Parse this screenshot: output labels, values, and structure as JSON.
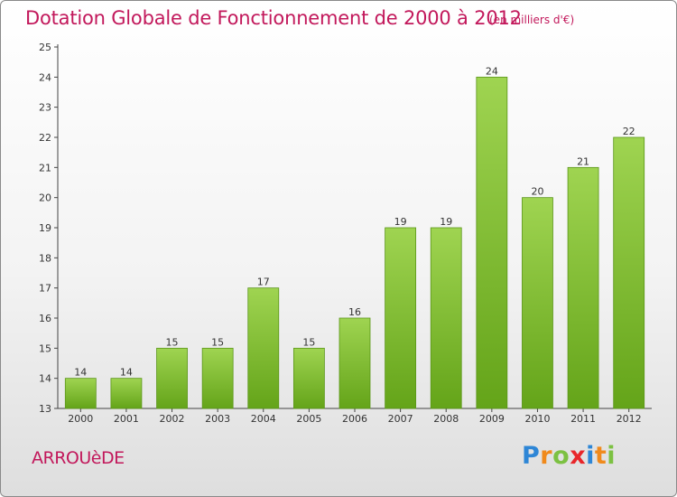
{
  "title": "Dotation Globale de Fonctionnement de 2000 à 2012",
  "subtitle": "(en milliers d'€)",
  "commune": "ARROUèDE",
  "logo": {
    "text": "Proxiti",
    "letters": [
      {
        "ch": "P",
        "color": "#2e86d6"
      },
      {
        "ch": "r",
        "color": "#f08a1c"
      },
      {
        "ch": "o",
        "color": "#7cc142"
      },
      {
        "ch": "x",
        "color": "#e8262a"
      },
      {
        "ch": "i",
        "color": "#2e86d6"
      },
      {
        "ch": "t",
        "color": "#f08a1c"
      },
      {
        "ch": "i",
        "color": "#7cc142"
      }
    ]
  },
  "colors": {
    "accent": "#c2185b",
    "bar_top": "#9fd451",
    "bar_bottom": "#64a419",
    "bar_edge": "#5a9618"
  },
  "chart_data": {
    "type": "bar",
    "categories": [
      "2000",
      "2001",
      "2002",
      "2003",
      "2004",
      "2005",
      "2006",
      "2007",
      "2008",
      "2009",
      "2010",
      "2011",
      "2012"
    ],
    "values": [
      14,
      14,
      15,
      15,
      17,
      15,
      16,
      19,
      19,
      24,
      20,
      21,
      22
    ],
    "value_labels": [
      "14",
      "14",
      "15",
      "15",
      "17",
      "15",
      "16",
      "19",
      "19",
      "24",
      "20",
      "21",
      "22"
    ],
    "yticks": [
      "13",
      "14",
      "15",
      "16",
      "17",
      "18",
      "19",
      "20",
      "21",
      "22",
      "23",
      "24",
      "25"
    ],
    "ylim": [
      13,
      25
    ],
    "grid": false,
    "xlabel": "",
    "ylabel": ""
  }
}
